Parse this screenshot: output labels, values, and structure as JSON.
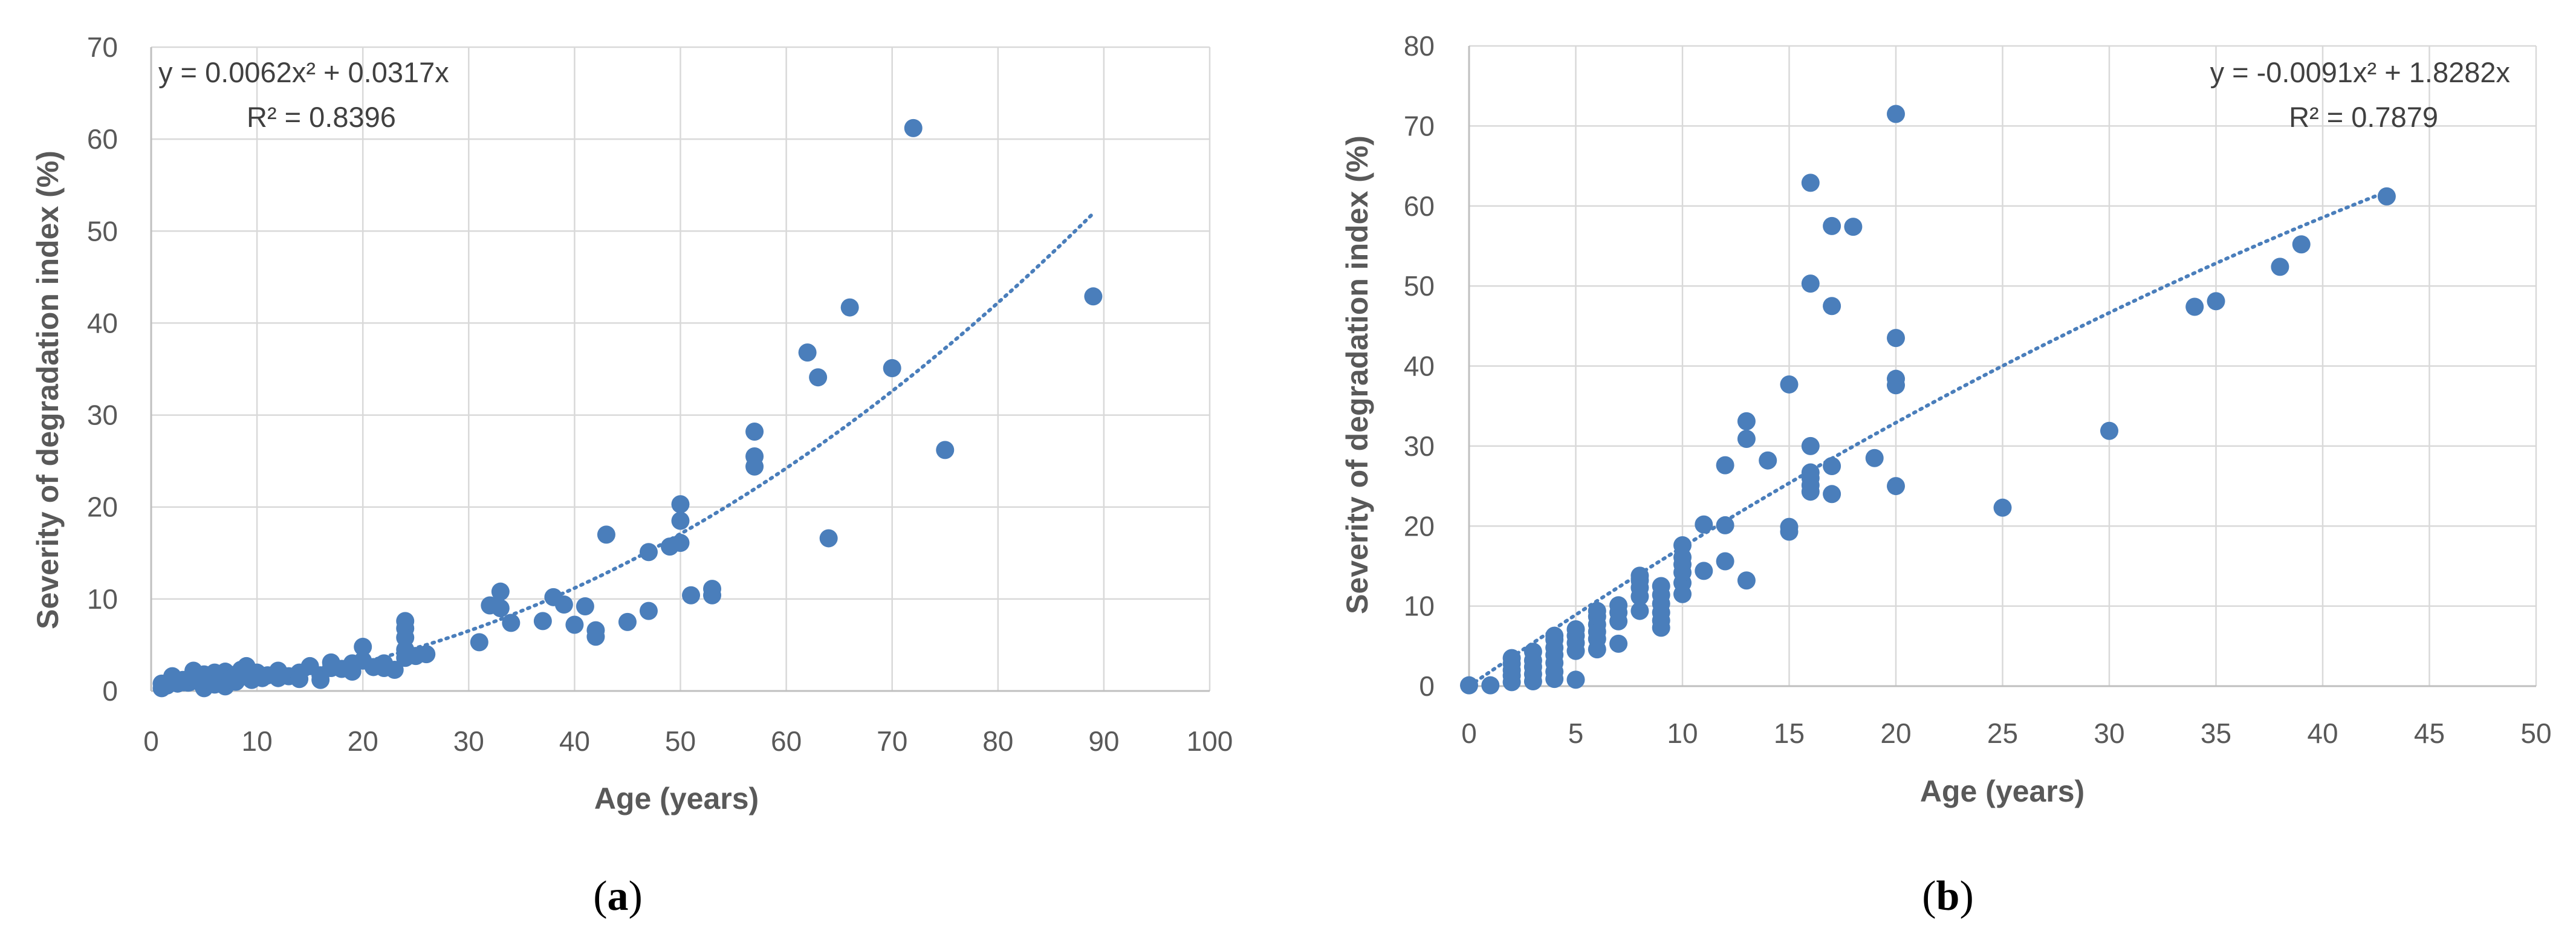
{
  "chart_data": [
    {
      "type": "scatter",
      "panel_label": "(a)",
      "xlabel": "Age (years)",
      "ylabel": "Severity of degradation index (%)",
      "xlim": [
        0,
        100
      ],
      "ylim": [
        0,
        70
      ],
      "xticks": [
        0,
        10,
        20,
        30,
        40,
        50,
        60,
        70,
        80,
        90,
        100
      ],
      "yticks": [
        0,
        10,
        20,
        30,
        40,
        50,
        60,
        70
      ],
      "grid": true,
      "legend": "none",
      "marker_color": "#4a7ebb",
      "equation": "y = 0.0062x² + 0.0317x",
      "r_squared": "R² = 0.8396",
      "trendline": {
        "style": "dotted",
        "a": 0.0062,
        "b": 0.0317,
        "c": 0,
        "x_range": [
          1,
          89
        ]
      },
      "points": [
        [
          1,
          0.3
        ],
        [
          1,
          0.8
        ],
        [
          1.5,
          0.6
        ],
        [
          2,
          1.0
        ],
        [
          2,
          1.6
        ],
        [
          2.5,
          0.8
        ],
        [
          3,
          1.2
        ],
        [
          3.5,
          0.9
        ],
        [
          4,
          1.5
        ],
        [
          4,
          2.2
        ],
        [
          4.5,
          1.0
        ],
        [
          5,
          0.3
        ],
        [
          5,
          1.8
        ],
        [
          5.5,
          1.2
        ],
        [
          6,
          2.0
        ],
        [
          6,
          0.7
        ],
        [
          6.5,
          1.5
        ],
        [
          7,
          0.5
        ],
        [
          7,
          2.1
        ],
        [
          7.5,
          1.3
        ],
        [
          8,
          1.8
        ],
        [
          8,
          1.0
        ],
        [
          8.5,
          2.3
        ],
        [
          9,
          1.6
        ],
        [
          9,
          2.7
        ],
        [
          9.5,
          1.2
        ],
        [
          10,
          2.0
        ],
        [
          10.5,
          1.4
        ],
        [
          11,
          1.7
        ],
        [
          12,
          2.2
        ],
        [
          12,
          1.4
        ],
        [
          13,
          1.6
        ],
        [
          14,
          2.0
        ],
        [
          14,
          1.3
        ],
        [
          15,
          2.7
        ],
        [
          16,
          1.7
        ],
        [
          16,
          1.2
        ],
        [
          17,
          2.5
        ],
        [
          17,
          3.1
        ],
        [
          18,
          2.4
        ],
        [
          19,
          2.1
        ],
        [
          19,
          3.0
        ],
        [
          20,
          3.3
        ],
        [
          20,
          4.8
        ],
        [
          21,
          2.6
        ],
        [
          22,
          3.0
        ],
        [
          22,
          2.5
        ],
        [
          23,
          2.3
        ],
        [
          24,
          3.6
        ],
        [
          24,
          4.5
        ],
        [
          24,
          5.8
        ],
        [
          24,
          6.8
        ],
        [
          24,
          7.6
        ],
        [
          25,
          3.8
        ],
        [
          26,
          4.0
        ],
        [
          31,
          5.3
        ],
        [
          32,
          9.3
        ],
        [
          33,
          9.0
        ],
        [
          33,
          10.8
        ],
        [
          34,
          7.4
        ],
        [
          37,
          7.6
        ],
        [
          38,
          10.2
        ],
        [
          39,
          9.4
        ],
        [
          40,
          7.2
        ],
        [
          41,
          9.2
        ],
        [
          42,
          6.6
        ],
        [
          42,
          5.9
        ],
        [
          43,
          17.0
        ],
        [
          45,
          7.5
        ],
        [
          47,
          15.1
        ],
        [
          47,
          8.7
        ],
        [
          49,
          15.7
        ],
        [
          50,
          16.1
        ],
        [
          50,
          18.5
        ],
        [
          50,
          20.3
        ],
        [
          51,
          10.4
        ],
        [
          53,
          11.1
        ],
        [
          53,
          10.4
        ],
        [
          57,
          24.4
        ],
        [
          57,
          25.5
        ],
        [
          57,
          28.2
        ],
        [
          62,
          36.8
        ],
        [
          63,
          34.1
        ],
        [
          64,
          16.6
        ],
        [
          66,
          41.7
        ],
        [
          70,
          35.1
        ],
        [
          72,
          61.2
        ],
        [
          75,
          26.2
        ],
        [
          89,
          42.9
        ]
      ]
    },
    {
      "type": "scatter",
      "panel_label": "(b)",
      "xlabel": "Age (years)",
      "ylabel": "Severity of degradation index (%)",
      "xlim": [
        0,
        50
      ],
      "ylim": [
        0,
        80
      ],
      "xticks": [
        0,
        5,
        10,
        15,
        20,
        25,
        30,
        35,
        40,
        45,
        50
      ],
      "yticks": [
        0,
        10,
        20,
        30,
        40,
        50,
        60,
        70,
        80
      ],
      "grid": true,
      "legend": "none",
      "marker_color": "#4a7ebb",
      "equation": "y = -0.0091x² + 1.8282x",
      "r_squared": "R² = 0.7879",
      "trendline": {
        "style": "dotted",
        "a": -0.0091,
        "b": 1.8282,
        "c": 0,
        "x_range": [
          0,
          43
        ]
      },
      "points": [
        [
          0,
          0.1
        ],
        [
          1,
          0.1
        ],
        [
          2,
          0.5
        ],
        [
          2,
          1.3
        ],
        [
          2,
          2.0
        ],
        [
          2,
          2.8
        ],
        [
          2,
          3.5
        ],
        [
          3,
          0.6
        ],
        [
          3,
          1.5
        ],
        [
          3,
          2.4
        ],
        [
          3,
          3.2
        ],
        [
          3,
          4.3
        ],
        [
          4,
          0.9
        ],
        [
          4,
          1.8
        ],
        [
          4,
          2.9
        ],
        [
          4,
          3.9
        ],
        [
          4,
          4.8
        ],
        [
          4,
          5.8
        ],
        [
          4,
          6.3
        ],
        [
          5,
          0.8
        ],
        [
          5,
          4.4
        ],
        [
          5,
          5.4
        ],
        [
          5,
          6.3
        ],
        [
          5,
          7.1
        ],
        [
          6,
          4.6
        ],
        [
          6,
          5.9
        ],
        [
          6,
          6.8
        ],
        [
          6,
          7.7
        ],
        [
          6,
          8.7
        ],
        [
          6,
          9.4
        ],
        [
          7,
          5.3
        ],
        [
          7,
          8.1
        ],
        [
          7,
          9.2
        ],
        [
          7,
          10.1
        ],
        [
          8,
          9.4
        ],
        [
          8,
          11.2
        ],
        [
          8,
          12.3
        ],
        [
          8,
          13.2
        ],
        [
          8,
          13.8
        ],
        [
          9,
          7.3
        ],
        [
          9,
          8.2
        ],
        [
          9,
          9.2
        ],
        [
          9,
          10.3
        ],
        [
          9,
          11.4
        ],
        [
          9,
          12.5
        ],
        [
          10,
          11.5
        ],
        [
          10,
          12.9
        ],
        [
          10,
          14.2
        ],
        [
          10,
          15.2
        ],
        [
          10,
          16.1
        ],
        [
          10,
          17.6
        ],
        [
          11,
          14.4
        ],
        [
          11,
          20.2
        ],
        [
          12,
          15.6
        ],
        [
          12,
          20.1
        ],
        [
          12,
          27.6
        ],
        [
          13,
          13.2
        ],
        [
          13,
          30.9
        ],
        [
          13,
          33.1
        ],
        [
          14,
          28.2
        ],
        [
          15,
          19.3
        ],
        [
          15,
          19.9
        ],
        [
          15,
          37.7
        ],
        [
          16,
          24.3
        ],
        [
          16,
          25.1
        ],
        [
          16,
          26.0
        ],
        [
          16,
          26.7
        ],
        [
          16,
          30.0
        ],
        [
          16,
          50.3
        ],
        [
          16,
          62.9
        ],
        [
          17,
          24.0
        ],
        [
          17,
          27.5
        ],
        [
          17,
          47.5
        ],
        [
          17,
          57.5
        ],
        [
          18,
          57.4
        ],
        [
          19,
          28.5
        ],
        [
          20,
          25.0
        ],
        [
          20,
          37.6
        ],
        [
          20,
          38.4
        ],
        [
          20,
          43.5
        ],
        [
          20,
          71.5
        ],
        [
          25,
          22.3
        ],
        [
          30,
          31.9
        ],
        [
          34,
          47.4
        ],
        [
          35,
          48.1
        ],
        [
          38,
          52.4
        ],
        [
          39,
          55.2
        ],
        [
          43,
          61.2
        ]
      ]
    }
  ]
}
